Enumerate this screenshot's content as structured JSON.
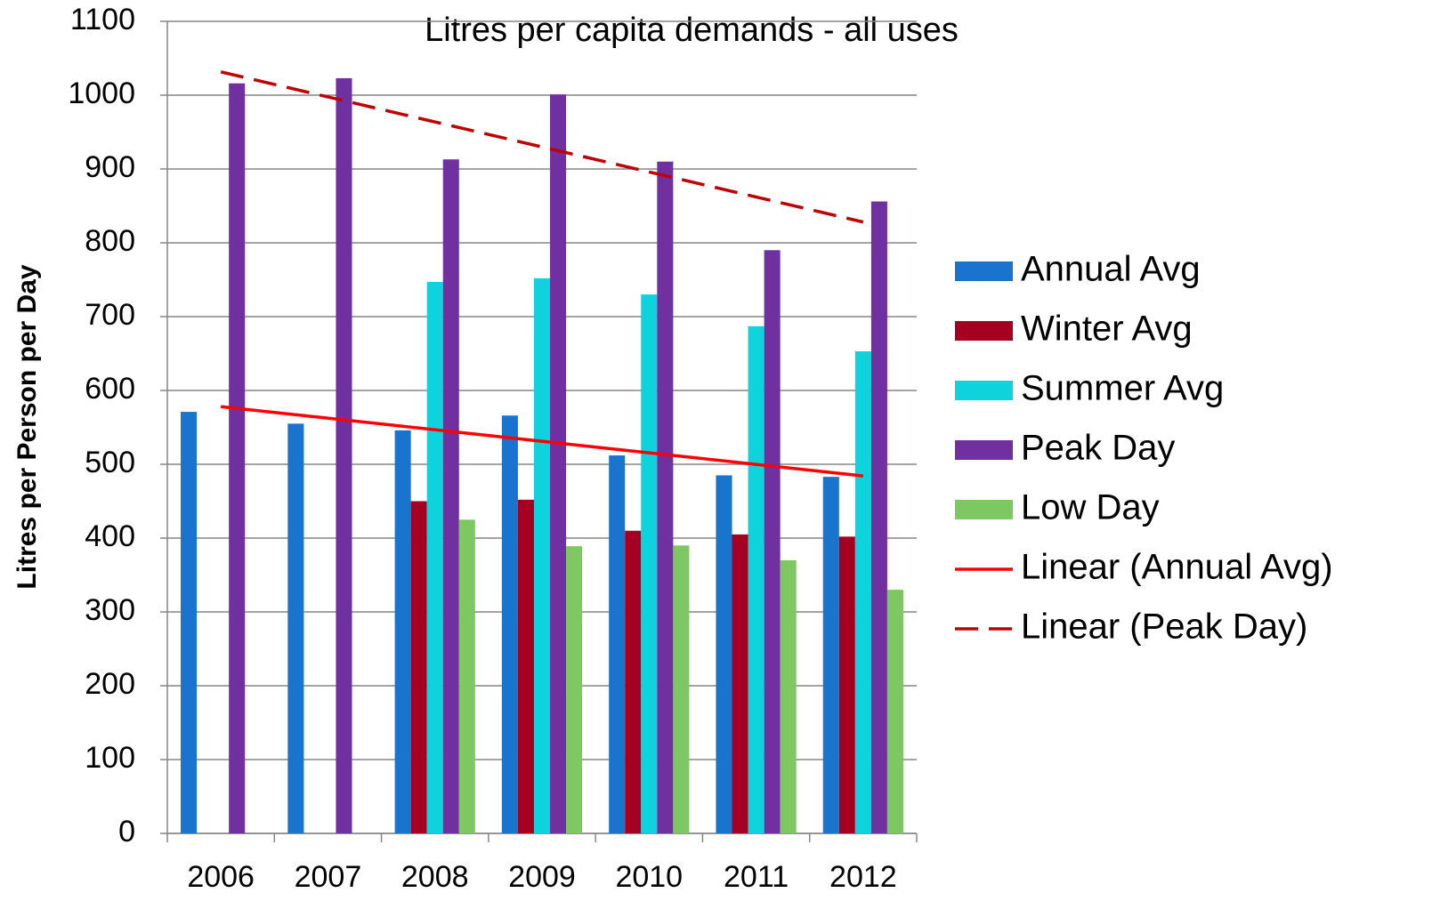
{
  "chart_data": {
    "type": "bar",
    "title": "Litres per capita demands - all uses",
    "y_label": "Litres per Person per Day",
    "categories": [
      "2006",
      "2007",
      "2008",
      "2009",
      "2010",
      "2011",
      "2012"
    ],
    "series": [
      {
        "name": "Annual Avg",
        "color": "#1874cd",
        "values": [
          571,
          555,
          546,
          566,
          512,
          485,
          483
        ]
      },
      {
        "name": "Winter Avg",
        "color": "#a50021",
        "values": [
          null,
          null,
          450,
          452,
          410,
          405,
          402
        ]
      },
      {
        "name": "Summer Avg",
        "color": "#0fd3dc",
        "values": [
          null,
          null,
          747,
          752,
          730,
          687,
          653
        ]
      },
      {
        "name": "Peak Day",
        "color": "#7030a0",
        "values": [
          1016,
          1023,
          913,
          1001,
          910,
          790,
          856
        ]
      },
      {
        "name": "Low Day",
        "color": "#7dc862",
        "values": [
          null,
          null,
          425,
          389,
          390,
          370,
          330
        ]
      }
    ],
    "trendlines": [
      {
        "name": "Linear (Annual Avg)",
        "series": 0,
        "color": "#ff0000",
        "dashed": false
      },
      {
        "name": "Linear (Peak Day)",
        "series": 3,
        "color": "#c00000",
        "dashed": true
      }
    ],
    "ylim": [
      0,
      1100
    ],
    "yticks": [
      0,
      100,
      200,
      300,
      400,
      500,
      600,
      700,
      800,
      900,
      1000,
      1100
    ],
    "grid": true,
    "legend": "right"
  }
}
